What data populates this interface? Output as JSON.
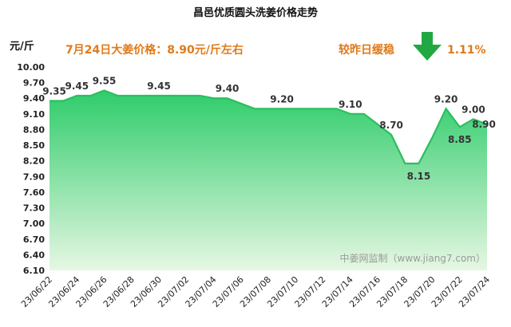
{
  "chart_data": {
    "type": "area",
    "title": "昌邑优质圆头洗姜价格走势",
    "y_unit": "元/斤",
    "annotation_price": "7月24日大姜价格：8.90元/斤左右",
    "annotation_change_label": "较昨日缓稳",
    "annotation_change_pct": "1.11%",
    "annotation_change_direction": "down-arrow-icon",
    "watermark": "中姜网监制（www.jiang7.com）",
    "ylim": [
      6.1,
      10.0
    ],
    "yticks": [
      "10.00",
      "9.70",
      "9.40",
      "9.10",
      "8.80",
      "8.50",
      "8.20",
      "7.90",
      "7.60",
      "7.30",
      "7.00",
      "6.70",
      "6.40",
      "6.10"
    ],
    "xticks": [
      "23/06/22",
      "23/06/24",
      "23/06/26",
      "23/06/28",
      "23/06/30",
      "23/07/02",
      "23/07/04",
      "23/07/06",
      "23/07/08",
      "23/07/10",
      "23/07/12",
      "23/07/14",
      "23/07/16",
      "23/07/18",
      "23/07/20",
      "23/07/22",
      "23/07/24"
    ],
    "x": [
      "23/06/22",
      "23/06/23",
      "23/06/24",
      "23/06/25",
      "23/06/26",
      "23/06/27",
      "23/06/28",
      "23/06/29",
      "23/06/30",
      "23/07/01",
      "23/07/02",
      "23/07/03",
      "23/07/04",
      "23/07/05",
      "23/07/06",
      "23/07/07",
      "23/07/08",
      "23/07/09",
      "23/07/10",
      "23/07/11",
      "23/07/12",
      "23/07/13",
      "23/07/14",
      "23/07/15",
      "23/07/16",
      "23/07/17",
      "23/07/18",
      "23/07/19",
      "23/07/20",
      "23/07/21",
      "23/07/22",
      "23/07/23",
      "23/07/24"
    ],
    "values": [
      9.35,
      9.35,
      9.45,
      9.45,
      9.55,
      9.45,
      9.45,
      9.45,
      9.45,
      9.45,
      9.45,
      9.45,
      9.4,
      9.4,
      9.3,
      9.2,
      9.2,
      9.2,
      9.2,
      9.2,
      9.2,
      9.2,
      9.1,
      9.1,
      8.9,
      8.7,
      8.15,
      8.15,
      8.65,
      9.2,
      8.85,
      9.0,
      8.9
    ],
    "data_labels": [
      {
        "i": 0,
        "text": "9.35"
      },
      {
        "i": 2,
        "text": "9.45"
      },
      {
        "i": 4,
        "text": "9.55"
      },
      {
        "i": 8,
        "text": "9.45"
      },
      {
        "i": 13,
        "text": "9.40"
      },
      {
        "i": 17,
        "text": "9.20"
      },
      {
        "i": 22,
        "text": "9.10"
      },
      {
        "i": 25,
        "text": "8.70"
      },
      {
        "i": 27,
        "text": "8.15"
      },
      {
        "i": 29,
        "text": "9.20"
      },
      {
        "i": 30,
        "text": "8.85"
      },
      {
        "i": 31,
        "text": "9.00"
      },
      {
        "i": 32,
        "text": "8.90"
      }
    ],
    "colors": {
      "line": "#2bbf5e",
      "fill_top": "#2ecc6a",
      "fill_bottom": "#e6f7e3",
      "accent_text": "#e07a1a",
      "arrow": "#21a843"
    },
    "grid": false
  }
}
